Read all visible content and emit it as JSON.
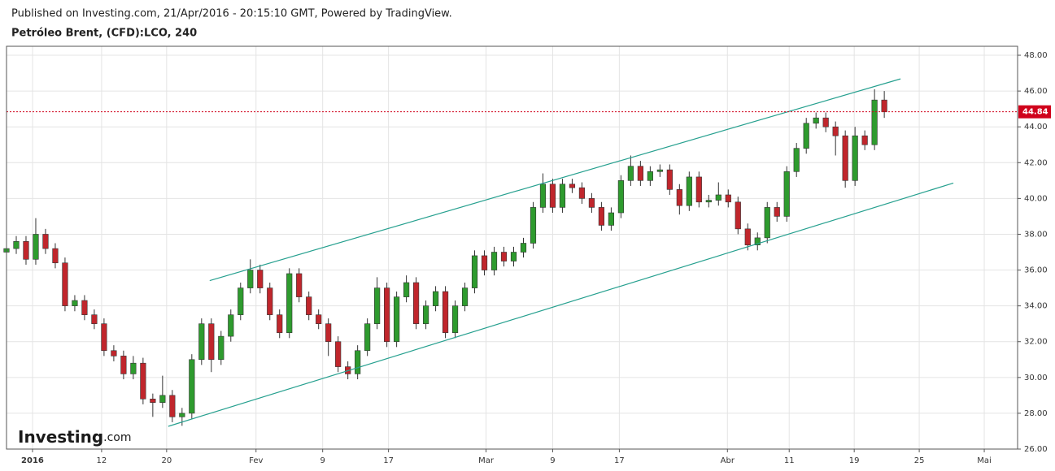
{
  "header": {
    "published": "Published on Investing.com, 21/Apr/2016 - 20:15:10 GMT, Powered by TradingView.",
    "symbol": "Petróleo Brent, (CFD):LCO, 240"
  },
  "logo": {
    "brand": "Investing",
    "suffix": ".com"
  },
  "chart_data": {
    "type": "candlestick",
    "x": [
      0,
      3,
      6,
      9,
      12,
      15,
      18,
      21,
      24,
      27,
      30,
      33,
      36,
      39,
      42,
      45,
      48,
      51,
      54,
      57,
      60,
      63,
      66,
      69,
      72,
      75,
      78,
      81,
      84,
      87,
      90,
      93,
      96,
      99,
      102,
      105,
      108,
      111,
      114,
      117,
      120,
      123,
      126,
      129,
      132,
      135,
      138,
      141,
      144,
      147,
      150,
      153,
      156,
      159,
      162,
      165,
      168,
      171,
      174,
      177,
      180,
      183,
      186,
      189,
      192,
      195,
      198,
      201,
      204,
      207,
      210,
      213,
      216,
      219,
      222,
      225,
      228,
      231,
      234,
      237,
      240,
      243,
      246,
      249,
      252,
      255,
      258,
      261,
      264,
      267,
      270
    ],
    "open": [
      37.0,
      37.2,
      37.6,
      36.6,
      38.0,
      37.2,
      36.4,
      34.0,
      34.3,
      33.5,
      33.0,
      31.5,
      31.2,
      30.2,
      30.8,
      28.8,
      28.6,
      29.0,
      27.8,
      28.0,
      31.0,
      33.0,
      31.0,
      32.3,
      33.5,
      35.0,
      36.0,
      35.0,
      33.5,
      32.5,
      35.8,
      34.5,
      33.5,
      33.0,
      32.0,
      30.6,
      30.2,
      31.5,
      33.0,
      35.0,
      32.0,
      34.5,
      35.3,
      33.0,
      34.0,
      34.8,
      32.5,
      34.0,
      35.0,
      36.8,
      36.0,
      37.0,
      36.5,
      37.0,
      37.5,
      39.5,
      40.8,
      39.5,
      40.8,
      40.6,
      40.0,
      39.5,
      38.5,
      39.2,
      41.0,
      41.8,
      41.0,
      41.5,
      41.6,
      40.5,
      39.6,
      41.2,
      39.8,
      39.9,
      40.2,
      39.8,
      38.3,
      37.4,
      37.8,
      39.5,
      39.0,
      41.5,
      42.8,
      44.2,
      44.5,
      44.0,
      43.5,
      41.0,
      43.5,
      43.0,
      45.5
    ],
    "high": [
      37.5,
      37.9,
      37.9,
      38.9,
      38.3,
      37.5,
      36.7,
      34.6,
      34.6,
      33.8,
      33.3,
      31.8,
      31.5,
      31.2,
      31.1,
      29.1,
      30.1,
      29.3,
      28.3,
      31.3,
      33.3,
      33.3,
      32.6,
      33.8,
      35.3,
      36.6,
      36.3,
      35.3,
      33.8,
      36.1,
      36.1,
      34.8,
      33.8,
      33.3,
      32.3,
      30.9,
      31.8,
      33.3,
      35.6,
      35.3,
      34.8,
      35.7,
      35.6,
      34.3,
      35.1,
      35.1,
      34.3,
      35.3,
      37.1,
      37.1,
      37.3,
      37.3,
      37.3,
      37.8,
      39.8,
      41.4,
      41.1,
      41.1,
      41.1,
      40.9,
      40.3,
      39.8,
      39.5,
      41.3,
      42.4,
      42.1,
      41.8,
      41.9,
      41.9,
      40.8,
      41.5,
      41.5,
      40.2,
      40.9,
      40.5,
      40.1,
      38.6,
      38.1,
      39.8,
      39.8,
      41.8,
      43.1,
      44.5,
      44.8,
      44.8,
      44.3,
      43.8,
      44.0,
      43.8,
      46.1,
      46.0
    ],
    "low": [
      36.7,
      36.9,
      36.3,
      36.3,
      36.9,
      36.1,
      33.7,
      33.7,
      33.2,
      32.7,
      31.2,
      30.9,
      29.9,
      29.9,
      28.5,
      27.8,
      28.3,
      27.5,
      27.3,
      27.7,
      30.7,
      30.3,
      30.7,
      32.0,
      33.2,
      34.7,
      34.7,
      33.2,
      32.2,
      32.2,
      34.2,
      33.2,
      32.7,
      31.2,
      30.3,
      29.9,
      29.9,
      31.2,
      32.7,
      31.7,
      31.7,
      34.2,
      32.7,
      32.7,
      33.7,
      32.2,
      32.2,
      33.7,
      34.7,
      35.7,
      35.7,
      36.2,
      36.2,
      36.7,
      37.2,
      39.2,
      39.2,
      39.2,
      40.3,
      39.7,
      39.2,
      38.2,
      38.2,
      38.9,
      40.7,
      40.7,
      40.7,
      41.2,
      40.2,
      39.1,
      39.3,
      39.5,
      39.5,
      39.6,
      39.5,
      38.0,
      37.1,
      37.1,
      37.5,
      38.7,
      38.7,
      41.2,
      42.5,
      43.9,
      43.7,
      42.4,
      40.6,
      40.7,
      42.7,
      42.7,
      44.5
    ],
    "close": [
      37.2,
      37.6,
      36.6,
      38.0,
      37.2,
      36.4,
      34.0,
      34.3,
      33.5,
      33.0,
      31.5,
      31.2,
      30.2,
      30.8,
      28.8,
      28.6,
      29.0,
      27.8,
      28.0,
      31.0,
      33.0,
      31.0,
      32.3,
      33.5,
      35.0,
      36.0,
      35.0,
      33.5,
      32.5,
      35.8,
      34.5,
      33.5,
      33.0,
      32.0,
      30.6,
      30.2,
      31.5,
      33.0,
      35.0,
      32.0,
      34.5,
      35.3,
      33.0,
      34.0,
      34.8,
      32.5,
      34.0,
      35.0,
      36.8,
      36.0,
      37.0,
      36.5,
      37.0,
      37.5,
      39.5,
      40.8,
      39.5,
      40.8,
      40.6,
      40.0,
      39.5,
      38.5,
      39.2,
      41.0,
      41.8,
      41.0,
      41.5,
      41.6,
      40.5,
      39.6,
      41.2,
      39.8,
      39.9,
      40.2,
      39.8,
      38.3,
      37.4,
      37.8,
      39.5,
      39.0,
      41.5,
      42.8,
      44.2,
      44.5,
      44.0,
      43.5,
      41.0,
      43.5,
      43.0,
      45.5,
      44.84
    ],
    "up_color": "#2e9b2e",
    "down_color": "#c0262c",
    "last_price": 44.84,
    "last_price_color": "#d0021b",
    "trend_lines": [
      {
        "x": [
          62.5,
          275
        ],
        "y": [
          35.41,
          46.68
        ]
      },
      {
        "x": [
          49.75,
          291.25
        ],
        "y": [
          27.27,
          40.86
        ]
      }
    ],
    "trend_color": "#26a08f",
    "xlim": [
      0,
      311
    ],
    "xticks": [
      {
        "value": 8,
        "label": "2016"
      },
      {
        "value": 29.25,
        "label": "12"
      },
      {
        "value": 49.25,
        "label": "20"
      },
      {
        "value": 76.75,
        "label": "Fev"
      },
      {
        "value": 97.25,
        "label": "9"
      },
      {
        "value": 117.5,
        "label": "17"
      },
      {
        "value": 147.5,
        "label": "Mar"
      },
      {
        "value": 168,
        "label": "9"
      },
      {
        "value": 188.5,
        "label": "17"
      },
      {
        "value": 221.75,
        "label": "Abr"
      },
      {
        "value": 240.75,
        "label": "11"
      },
      {
        "value": 260.75,
        "label": "19"
      },
      {
        "value": 280.75,
        "label": "25"
      },
      {
        "value": 300.75,
        "label": "Mai"
      }
    ],
    "ylim": [
      26,
      48.5
    ],
    "yticks": [
      {
        "value": 26,
        "label": "26.00"
      },
      {
        "value": 28,
        "label": "28.00"
      },
      {
        "value": 30,
        "label": "30.00"
      },
      {
        "value": 32,
        "label": "32.00"
      },
      {
        "value": 34,
        "label": "34.00"
      },
      {
        "value": 36,
        "label": "36.00"
      },
      {
        "value": 38,
        "label": "38.00"
      },
      {
        "value": 40,
        "label": "40.00"
      },
      {
        "value": 42,
        "label": "42.00"
      },
      {
        "value": 44,
        "label": "44.00"
      },
      {
        "value": 46,
        "label": "46.00"
      },
      {
        "value": 48,
        "label": "48.00"
      }
    ],
    "grid": true
  }
}
